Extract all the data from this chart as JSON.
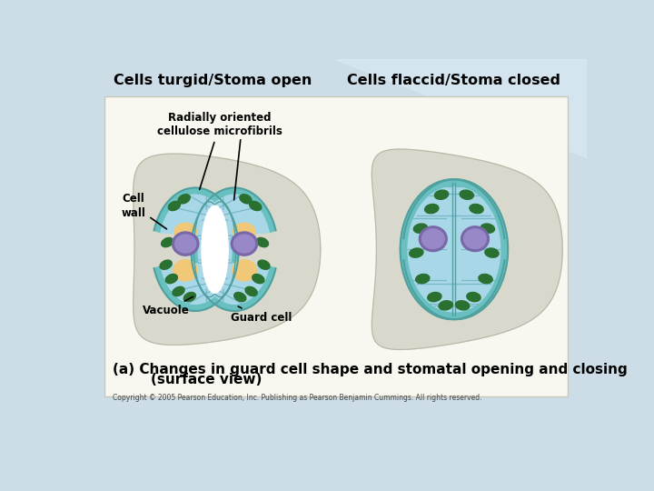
{
  "title_left": "Cells turgid/Stoma open",
  "title_right": "Cells flaccid/Stoma closed",
  "caption_line1": "(a) Changes in guard cell shape and stomatal opening and closing",
  "caption_line2": "        (surface view)",
  "copyright": "Copyright © 2005 Pearson Education, Inc. Publishing as Pearson Benjamin Cummings. All rights reserved.",
  "label_radially": "Radially oriented\ncellulose microfibrils",
  "label_cell_wall": "Cell\nwall",
  "label_vacuole": "Vacuole",
  "label_guard": "Guard cell",
  "bg_top_left": "#b8d4e0",
  "bg_top_right": "#d8eaf0",
  "panel_bg": "#f8f8f2",
  "epidermal_color": "#dcdcd4",
  "teal_outer": "#68c0c0",
  "tan_color": "#f0c878",
  "blue_interior": "#a8d8e8",
  "stripe_color": "#78b8c8",
  "vacuole_dark": "#7868a8",
  "vacuole_light": "#9888c8",
  "chloro_color": "#2a7030",
  "stoma_white": "#ffffff",
  "border_color": "#50a0a0"
}
